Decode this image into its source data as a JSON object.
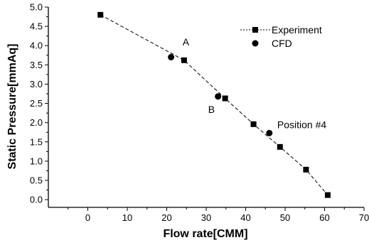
{
  "chart_data": {
    "type": "scatter",
    "xlabel": "Flow rate[CMM]",
    "ylabel": "Static Pressure[mmAq]",
    "xlim": [
      -10,
      70
    ],
    "ylim": [
      -0.2,
      5.0
    ],
    "x_ticks": [
      "0",
      "10",
      "20",
      "30",
      "40",
      "50",
      "60",
      "70"
    ],
    "y_ticks": [
      "0.0",
      "0.5",
      "1.0",
      "1.5",
      "2.0",
      "2.5",
      "3.0",
      "3.5",
      "4.0",
      "4.5",
      "5.0"
    ],
    "grid": false,
    "legend_position": "top-right",
    "series": [
      {
        "name": "Experiment",
        "marker": "square",
        "line": "dashed",
        "color": "#000000",
        "x": [
          3.2,
          24.4,
          34.8,
          42.0,
          48.7,
          55.3,
          60.8
        ],
        "y": [
          4.8,
          3.62,
          2.63,
          1.96,
          1.37,
          0.78,
          0.12
        ]
      },
      {
        "name": "CFD",
        "marker": "circle",
        "line": "none",
        "color": "#000000",
        "x": [
          21.1,
          33.0,
          46.0
        ],
        "y": [
          3.7,
          2.68,
          1.73
        ]
      }
    ],
    "annotations": [
      {
        "text": "A",
        "x": 24.0,
        "y": 4.0
      },
      {
        "text": "B",
        "x": 30.5,
        "y": 2.25
      },
      {
        "text": "Position #4",
        "x": 48.0,
        "y": 1.86
      }
    ]
  }
}
